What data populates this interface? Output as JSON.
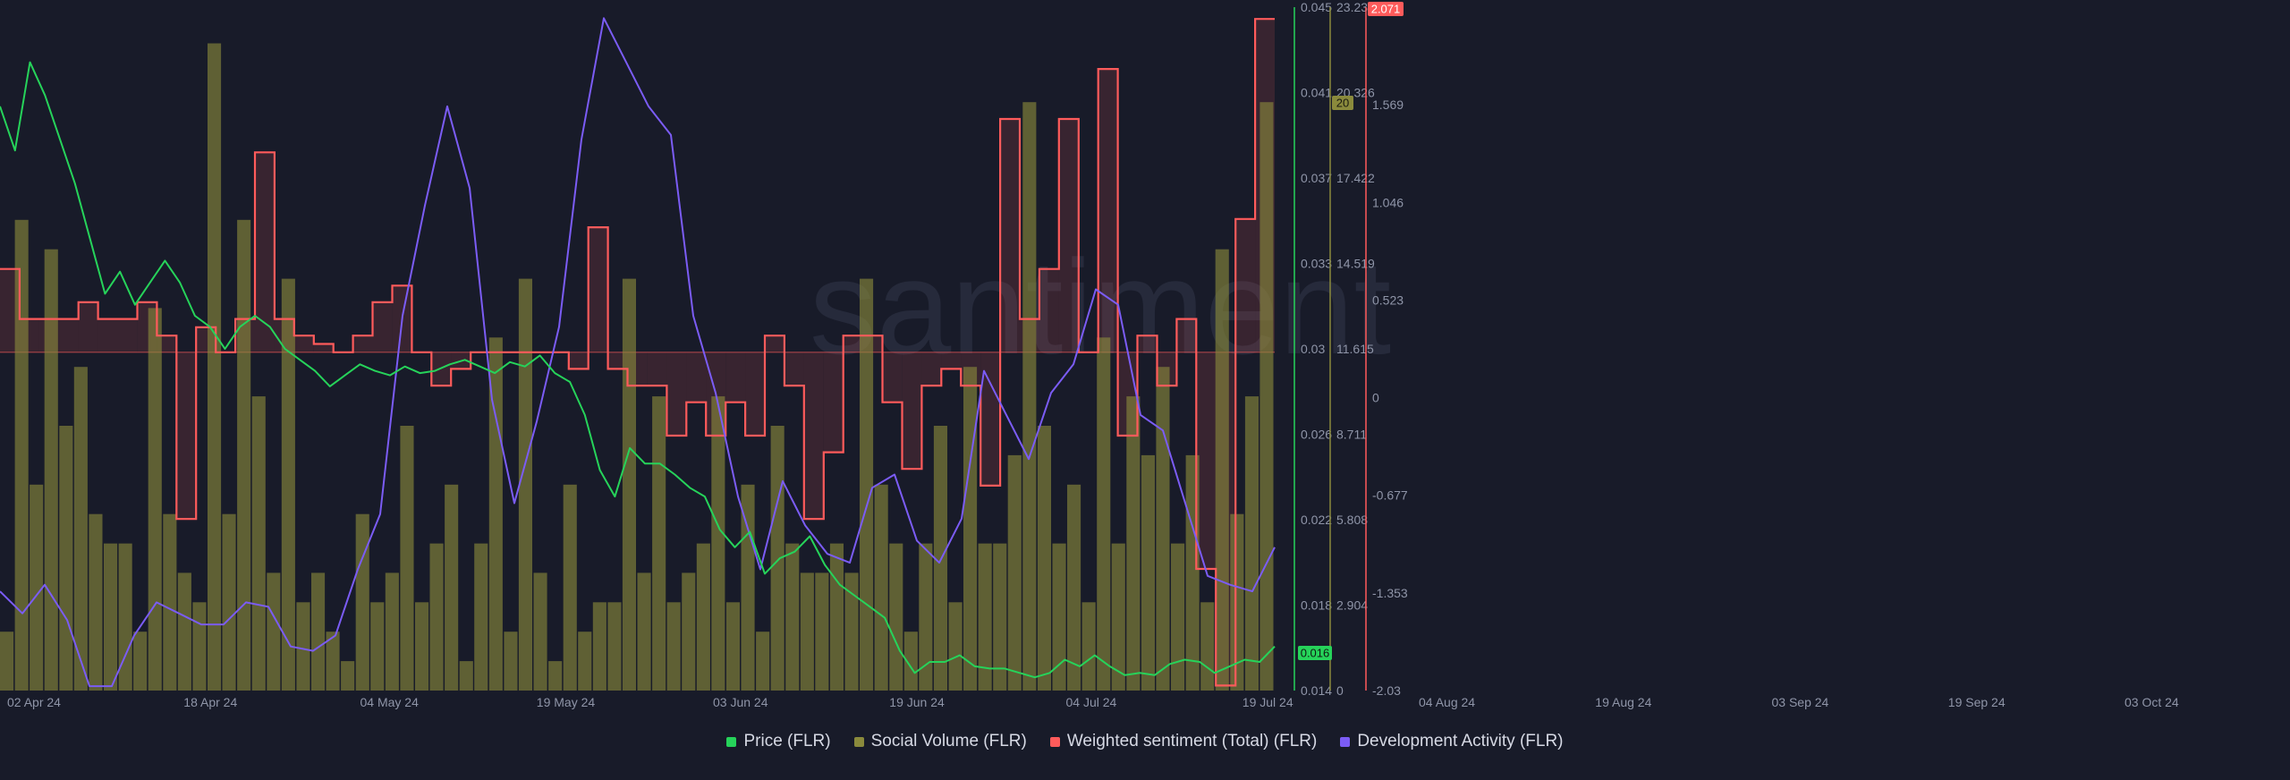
{
  "watermark": "santiment",
  "legend": [
    {
      "label": "Price (FLR)",
      "color": "#26d35a"
    },
    {
      "label": "Social Volume (FLR)",
      "color": "#8a8a3c"
    },
    {
      "label": "Weighted sentiment (Total) (FLR)",
      "color": "#ff5b5b"
    },
    {
      "label": "Development Activity (FLR)",
      "color": "#7b5cf5"
    }
  ],
  "badges": {
    "price": "0.016",
    "social": "20",
    "sentiment": "2.071"
  },
  "chart_data": {
    "type": "line",
    "x_ticks": [
      "02 Apr 24",
      "18 Apr 24",
      "04 May 24",
      "19 May 24",
      "03 Jun 24",
      "19 Jun 24",
      "04 Jul 24",
      "19 Jul 24",
      "04 Aug 24",
      "19 Aug 24",
      "03 Sep 24",
      "19 Sep 24",
      "03 Oct 24"
    ],
    "axes": {
      "price": {
        "ticks": [
          "0.045",
          "0.041",
          "0.037",
          "0.033",
          "0.03",
          "0.026",
          "0.022",
          "0.018",
          "0.014"
        ],
        "range": [
          0.014,
          0.045
        ],
        "color": "#26d35a"
      },
      "social_volume": {
        "ticks": [
          "23.23",
          "20.326",
          "17.422",
          "14.519",
          "11.615",
          "8.711",
          "5.808",
          "2.904",
          "0"
        ],
        "range": [
          0,
          23.23
        ],
        "color": "#8a8a3c"
      },
      "sentiment": {
        "ticks": [
          "2.071",
          "1.569",
          "1.046",
          "0.523",
          "0",
          "-0.677",
          "-1.353",
          "-2.03"
        ],
        "range": [
          -2.03,
          2.071
        ],
        "color": "#ff5b5b"
      }
    },
    "series": [
      {
        "name": "Price (FLR)",
        "color": "#26d35a",
        "axis": "price",
        "values": [
          0.0405,
          0.0385,
          0.0425,
          0.041,
          0.039,
          0.037,
          0.0345,
          0.032,
          0.033,
          0.0315,
          0.0325,
          0.0335,
          0.0325,
          0.031,
          0.0305,
          0.0295,
          0.0305,
          0.031,
          0.0305,
          0.0295,
          0.029,
          0.0285,
          0.0278,
          0.0283,
          0.0288,
          0.0285,
          0.0283,
          0.0287,
          0.0284,
          0.0285,
          0.0288,
          0.029,
          0.0287,
          0.0284,
          0.0289,
          0.0287,
          0.0292,
          0.0284,
          0.028,
          0.0265,
          0.024,
          0.0228,
          0.025,
          0.0243,
          0.0243,
          0.0238,
          0.0232,
          0.0228,
          0.0213,
          0.0205,
          0.0212,
          0.0193,
          0.02,
          0.0203,
          0.021,
          0.0197,
          0.0188,
          0.0183,
          0.0178,
          0.0173,
          0.0158,
          0.0148,
          0.0153,
          0.0153,
          0.0156,
          0.0151,
          0.015,
          0.015,
          0.0148,
          0.0146,
          0.0148,
          0.0154,
          0.0151,
          0.0156,
          0.0151,
          0.0147,
          0.0148,
          0.0147,
          0.0152,
          0.0154,
          0.0153,
          0.0148,
          0.0151,
          0.0154,
          0.0153,
          0.016
        ]
      },
      {
        "name": "Social Volume (FLR)",
        "color": "#8a8a3c",
        "axis": "social_volume",
        "values": [
          2,
          16,
          7,
          15,
          9,
          11,
          6,
          5,
          5,
          2,
          13,
          6,
          4,
          3,
          22,
          6,
          16,
          10,
          4,
          14,
          3,
          4,
          2,
          1,
          6,
          3,
          4,
          9,
          3,
          5,
          7,
          1,
          5,
          12,
          2,
          14,
          4,
          1,
          7,
          2,
          3,
          3,
          14,
          4,
          10,
          3,
          4,
          5,
          10,
          3,
          7,
          2,
          9,
          5,
          4,
          4,
          5,
          4,
          14,
          7,
          5,
          2,
          5,
          9,
          3,
          11,
          5,
          5,
          8,
          20,
          9,
          5,
          7,
          3,
          12,
          5,
          10,
          8,
          11,
          5,
          8,
          3,
          15,
          6,
          10,
          20
        ]
      },
      {
        "name": "Weighted sentiment (Total) (FLR)",
        "color": "#ff5b5b",
        "axis": "sentiment",
        "values": [
          0.5,
          0.2,
          0.2,
          0.2,
          0.3,
          0.2,
          0.2,
          0.3,
          0.1,
          -1.0,
          0.15,
          0,
          0.2,
          1.2,
          0.2,
          0.1,
          0.05,
          0,
          0.1,
          0.3,
          0.4,
          0.0,
          -0.2,
          -0.1,
          0.0,
          0.0,
          0.0,
          0.0,
          0.0,
          -0.1,
          0.75,
          -0.1,
          -0.2,
          -0.2,
          -0.5,
          -0.3,
          -0.5,
          -0.3,
          -0.5,
          0.1,
          -0.2,
          -1.0,
          -0.6,
          0.1,
          0.1,
          -0.3,
          -0.7,
          -0.2,
          -0.1,
          -0.2,
          -0.8,
          1.4,
          0.2,
          0.5,
          1.4,
          0.0,
          1.7,
          -0.5,
          0.1,
          -0.2,
          0.2,
          -1.3,
          -2.0,
          0.8,
          2.0
        ]
      },
      {
        "name": "Development Activity (FLR)",
        "color": "#7b5cf5",
        "axis": "price",
        "values": [
          0.0185,
          0.0175,
          0.0188,
          0.0172,
          0.0142,
          0.0142,
          0.0165,
          0.018,
          0.0175,
          0.017,
          0.017,
          0.018,
          0.0178,
          0.016,
          0.0158,
          0.0165,
          0.0195,
          0.022,
          0.031,
          0.036,
          0.0405,
          0.0368,
          0.0272,
          0.0225,
          0.0262,
          0.0305,
          0.039,
          0.0445,
          0.0425,
          0.0405,
          0.0392,
          0.031,
          0.0275,
          0.0228,
          0.0195,
          0.0235,
          0.0215,
          0.0202,
          0.0198,
          0.0232,
          0.0238,
          0.0208,
          0.0198,
          0.0218,
          0.0285,
          0.0265,
          0.0245,
          0.0275,
          0.0288,
          0.0322,
          0.0315,
          0.0265,
          0.0258,
          0.0225,
          0.0192,
          0.0188,
          0.0185,
          0.0205
        ]
      }
    ]
  }
}
